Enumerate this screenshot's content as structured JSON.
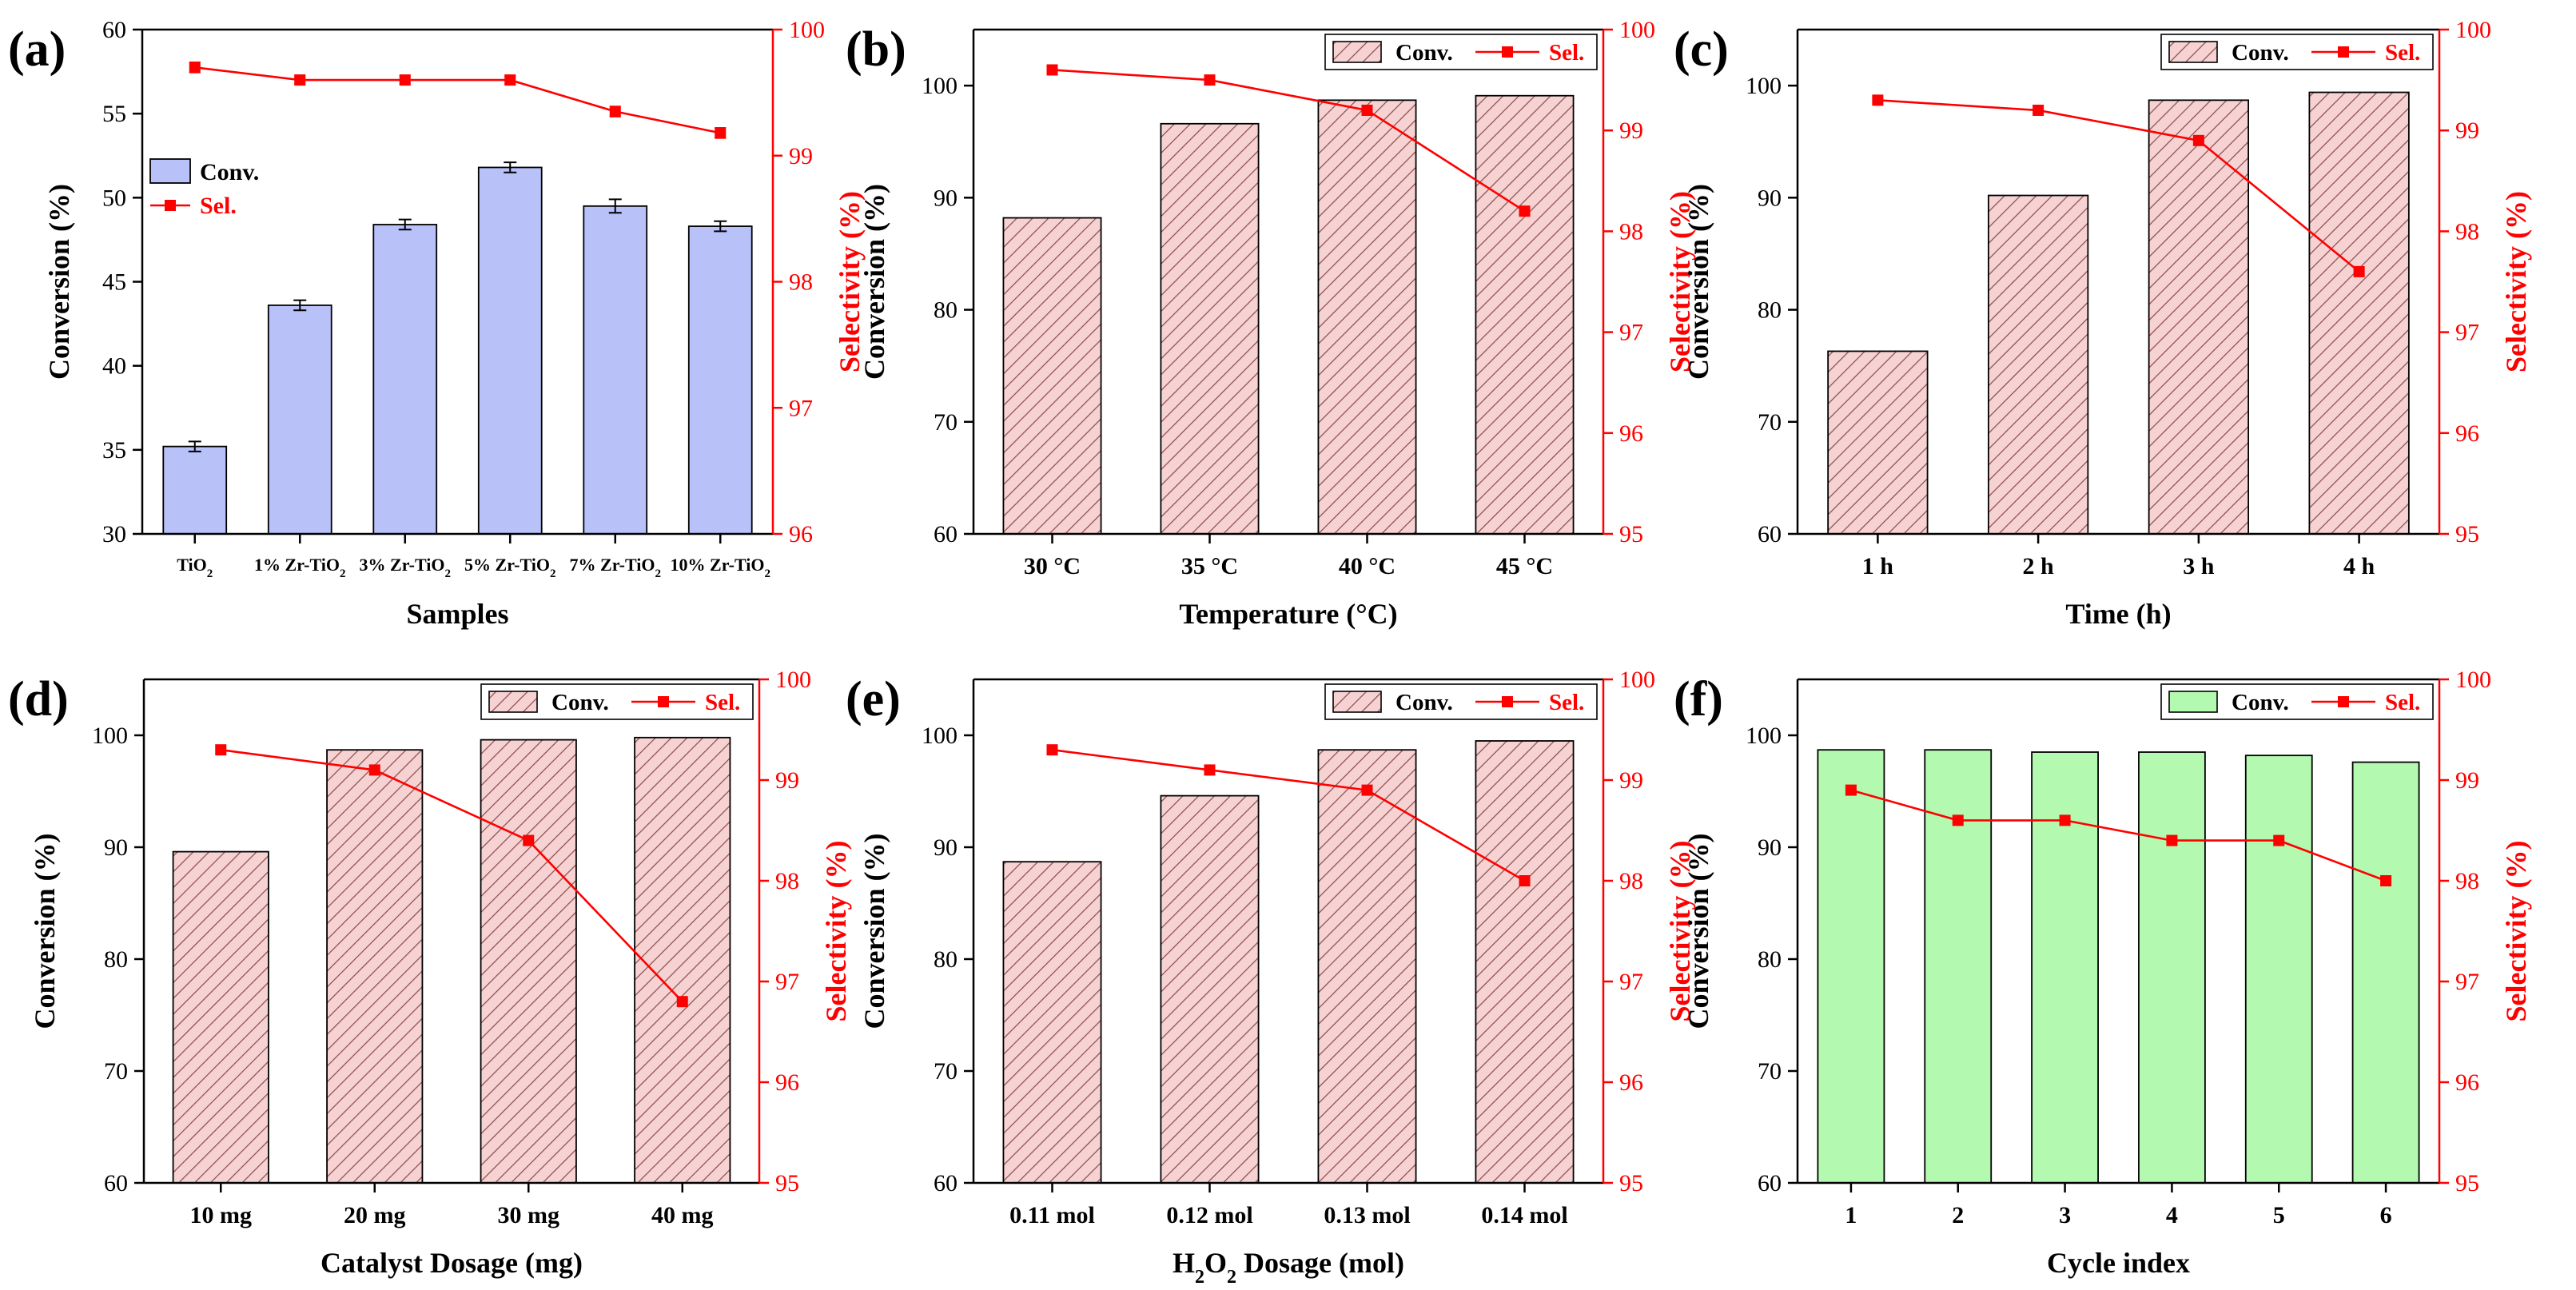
{
  "chart_data": [
    {
      "type": "bar",
      "panel_label": "(a)",
      "categories": [
        "TiO",
        "1% Zr-TiO",
        "3% Zr-TiO",
        "5% Zr-TiO",
        "7% Zr-TiO",
        "10% Zr-TiO"
      ],
      "category_subscripts": [
        "2",
        "2",
        "2",
        "2",
        "2",
        "2"
      ],
      "xlabel": "Samples",
      "ylabel": "Conversion (%)",
      "y2label": "Selectivity (%)",
      "ylim": [
        30,
        60
      ],
      "yticks": [
        30,
        35,
        40,
        45,
        50,
        55,
        60
      ],
      "y2lim": [
        96,
        100
      ],
      "y2ticks": [
        96,
        97,
        98,
        99,
        100
      ],
      "bar_style": "solid",
      "bar_color": "#b8c1f8",
      "legend": {
        "position": "middle-left",
        "conv_label": "Conv.",
        "sel_label": "Sel."
      },
      "series": [
        {
          "name": "Conv.",
          "axis": "left",
          "kind": "bar",
          "values": [
            35.2,
            43.6,
            48.4,
            51.8,
            49.5,
            48.3
          ],
          "errors": [
            0.3,
            0.3,
            0.3,
            0.3,
            0.4,
            0.3
          ]
        },
        {
          "name": "Sel.",
          "axis": "right",
          "kind": "line",
          "values": [
            99.7,
            99.6,
            99.6,
            99.6,
            99.35,
            99.18
          ],
          "errors": [
            0.04,
            0.03,
            0.03,
            0.03,
            0.04,
            0.04
          ]
        }
      ]
    },
    {
      "type": "bar",
      "panel_label": "(b)",
      "categories": [
        "30 °C",
        "35 °C",
        "40 °C",
        "45 °C"
      ],
      "xlabel": "Temperature (°C)",
      "ylabel": "Conversion (%)",
      "y2label": "Selectivity (%)",
      "ylim": [
        60,
        105
      ],
      "yticks": [
        60,
        70,
        80,
        90,
        100
      ],
      "y2lim": [
        95,
        100
      ],
      "y2ticks": [
        95,
        96,
        97,
        98,
        99,
        100
      ],
      "bar_style": "hatched",
      "bar_color": "#f6d2d2",
      "legend": {
        "position": "top-right",
        "conv_label": "Conv.",
        "sel_label": "Sel."
      },
      "series": [
        {
          "name": "Conv.",
          "axis": "left",
          "kind": "bar",
          "values": [
            88.2,
            96.6,
            98.7,
            99.1
          ]
        },
        {
          "name": "Sel.",
          "axis": "right",
          "kind": "line",
          "values": [
            99.6,
            99.5,
            99.2,
            98.2
          ]
        }
      ]
    },
    {
      "type": "bar",
      "panel_label": "(c)",
      "categories": [
        "1 h",
        "2 h",
        "3 h",
        "4 h"
      ],
      "xlabel": "Time (h)",
      "ylabel": "Conversion (%)",
      "y2label": "Selectivity (%)",
      "ylim": [
        60,
        105
      ],
      "yticks": [
        60,
        70,
        80,
        90,
        100
      ],
      "y2lim": [
        95,
        100
      ],
      "y2ticks": [
        95,
        96,
        97,
        98,
        99,
        100
      ],
      "bar_style": "hatched",
      "bar_color": "#f6d2d2",
      "legend": {
        "position": "top-right",
        "conv_label": "Conv.",
        "sel_label": "Sel."
      },
      "series": [
        {
          "name": "Conv.",
          "axis": "left",
          "kind": "bar",
          "values": [
            76.3,
            90.2,
            98.7,
            99.4
          ]
        },
        {
          "name": "Sel.",
          "axis": "right",
          "kind": "line",
          "values": [
            99.3,
            99.2,
            98.9,
            97.6
          ]
        }
      ]
    },
    {
      "type": "bar",
      "panel_label": "(d)",
      "categories": [
        "10 mg",
        "20 mg",
        "30 mg",
        "40 mg"
      ],
      "xlabel": "Catalyst Dosage (mg)",
      "ylabel": "Conversion (%)",
      "y2label": "Selectivity (%)",
      "ylim": [
        60,
        105
      ],
      "yticks": [
        60,
        70,
        80,
        90,
        100
      ],
      "y2lim": [
        95,
        100
      ],
      "y2ticks": [
        95,
        96,
        97,
        98,
        99,
        100
      ],
      "bar_style": "hatched",
      "bar_color": "#f6d2d2",
      "legend": {
        "position": "top-right",
        "conv_label": "Conv.",
        "sel_label": "Sel."
      },
      "series": [
        {
          "name": "Conv.",
          "axis": "left",
          "kind": "bar",
          "values": [
            89.6,
            98.7,
            99.6,
            99.8
          ]
        },
        {
          "name": "Sel.",
          "axis": "right",
          "kind": "line",
          "values": [
            99.3,
            99.1,
            98.4,
            96.8
          ]
        }
      ]
    },
    {
      "type": "bar",
      "panel_label": "(e)",
      "categories": [
        "0.11 mol",
        "0.12 mol",
        "0.13 mol",
        "0.14 mol"
      ],
      "xlabel_parts": [
        "H",
        "2",
        "O",
        "2",
        " Dosage (mol)"
      ],
      "ylabel": "Conversion (%)",
      "y2label": "Selectivity (%)",
      "ylim": [
        60,
        105
      ],
      "yticks": [
        60,
        70,
        80,
        90,
        100
      ],
      "y2lim": [
        95,
        100
      ],
      "y2ticks": [
        95,
        96,
        97,
        98,
        99,
        100
      ],
      "bar_style": "hatched",
      "bar_color": "#f6d2d2",
      "legend": {
        "position": "top-right",
        "conv_label": "Conv.",
        "sel_label": "Sel."
      },
      "series": [
        {
          "name": "Conv.",
          "axis": "left",
          "kind": "bar",
          "values": [
            88.7,
            94.6,
            98.7,
            99.5
          ]
        },
        {
          "name": "Sel.",
          "axis": "right",
          "kind": "line",
          "values": [
            99.3,
            99.1,
            98.9,
            98.0
          ]
        }
      ]
    },
    {
      "type": "bar",
      "panel_label": "(f)",
      "categories": [
        "1",
        "2",
        "3",
        "4",
        "5",
        "6"
      ],
      "xlabel": "Cycle index",
      "ylabel": "Conversion (%)",
      "y2label": "Selectivity (%)",
      "ylim": [
        60,
        105
      ],
      "yticks": [
        60,
        70,
        80,
        90,
        100
      ],
      "y2lim": [
        95,
        100
      ],
      "y2ticks": [
        95,
        96,
        97,
        98,
        99,
        100
      ],
      "bar_style": "solid",
      "bar_color": "#b3f9b0",
      "legend": {
        "position": "top-right",
        "conv_label": "Conv.",
        "sel_label": "Sel."
      },
      "series": [
        {
          "name": "Conv.",
          "axis": "left",
          "kind": "bar",
          "values": [
            98.7,
            98.7,
            98.5,
            98.5,
            98.2,
            97.6
          ]
        },
        {
          "name": "Sel.",
          "axis": "right",
          "kind": "line",
          "values": [
            98.9,
            98.6,
            98.6,
            98.4,
            98.4,
            98.0
          ]
        }
      ]
    }
  ],
  "colors": {
    "selectivity": "#ff0000",
    "axis": "#000000",
    "hatch": "#8a4a4a"
  }
}
